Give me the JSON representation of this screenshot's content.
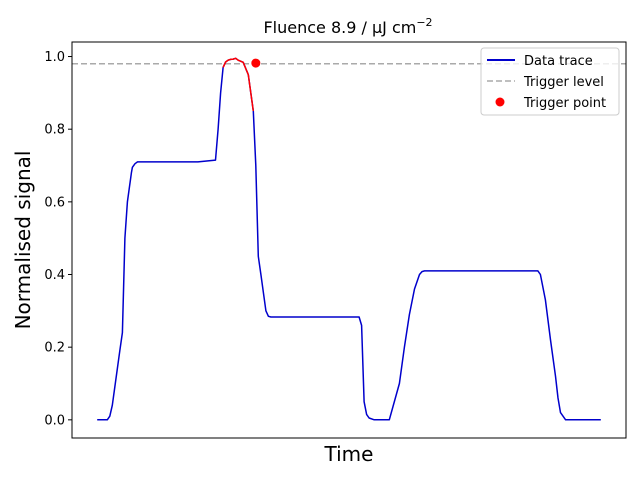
{
  "chart_data": {
    "type": "line",
    "title_main": "Fluence 8.9 / μJ cm",
    "title_sup": "−2",
    "xlabel": "Time",
    "ylabel": "Normalised signal",
    "ylim": [
      -0.05,
      1.04
    ],
    "xlim": [
      -0.05,
      1.05
    ],
    "yticks": [
      0.0,
      0.2,
      0.4,
      0.6,
      0.8,
      1.0
    ],
    "ytick_labels": [
      "0.0",
      "0.2",
      "0.4",
      "0.6",
      "0.8",
      "1.0"
    ],
    "x_ticks_shown": false,
    "grid": false,
    "legend_position": "top-right",
    "colors": {
      "data": "#0000cc",
      "highlight": "#ff0000",
      "trigger": "#aaaaaa",
      "point": "#ff0000"
    },
    "series": [
      {
        "name": "Data trace",
        "style": "solid",
        "x": [
          0.0,
          0.02,
          0.025,
          0.03,
          0.035,
          0.04,
          0.045,
          0.05,
          0.055,
          0.06,
          0.064,
          0.066,
          0.068,
          0.07,
          0.075,
          0.08,
          0.09,
          0.1,
          0.12,
          0.15,
          0.18,
          0.2,
          0.235,
          0.24,
          0.245,
          0.25,
          0.255,
          0.26,
          0.265,
          0.27,
          0.275,
          0.28,
          0.29,
          0.3,
          0.31,
          0.315,
          0.32,
          0.325,
          0.33,
          0.335,
          0.34,
          0.345,
          0.35,
          0.36,
          0.37,
          0.38,
          0.4,
          0.45,
          0.5,
          0.52,
          0.525,
          0.53,
          0.535,
          0.54,
          0.55,
          0.56,
          0.58,
          0.6,
          0.61,
          0.62,
          0.63,
          0.64,
          0.645,
          0.65,
          0.66,
          0.7,
          0.75,
          0.8,
          0.875,
          0.88,
          0.89,
          0.9,
          0.91,
          0.915,
          0.92,
          0.93,
          0.95,
          1.0
        ],
        "y": [
          0.0,
          0.0,
          0.01,
          0.04,
          0.09,
          0.14,
          0.19,
          0.24,
          0.5,
          0.6,
          0.64,
          0.66,
          0.68,
          0.695,
          0.705,
          0.71,
          0.71,
          0.71,
          0.71,
          0.71,
          0.71,
          0.71,
          0.715,
          0.8,
          0.9,
          0.97,
          0.985,
          0.99,
          0.992,
          0.993,
          0.995,
          0.99,
          0.984,
          0.95,
          0.85,
          0.7,
          0.45,
          0.4,
          0.35,
          0.3,
          0.285,
          0.283,
          0.283,
          0.283,
          0.283,
          0.283,
          0.283,
          0.283,
          0.283,
          0.283,
          0.26,
          0.05,
          0.015,
          0.005,
          0.0,
          0.0,
          0.0,
          0.1,
          0.2,
          0.29,
          0.36,
          0.4,
          0.408,
          0.41,
          0.41,
          0.41,
          0.41,
          0.41,
          0.41,
          0.4,
          0.33,
          0.22,
          0.12,
          0.06,
          0.02,
          0.0,
          0.0,
          0.0
        ]
      },
      {
        "name": "Trigger level",
        "style": "dashed",
        "y": 0.98
      },
      {
        "name": "Trigger point",
        "style": "marker",
        "x": 0.315,
        "y": 0.982
      }
    ],
    "highlight_range": [
      0.25,
      0.31
    ]
  }
}
